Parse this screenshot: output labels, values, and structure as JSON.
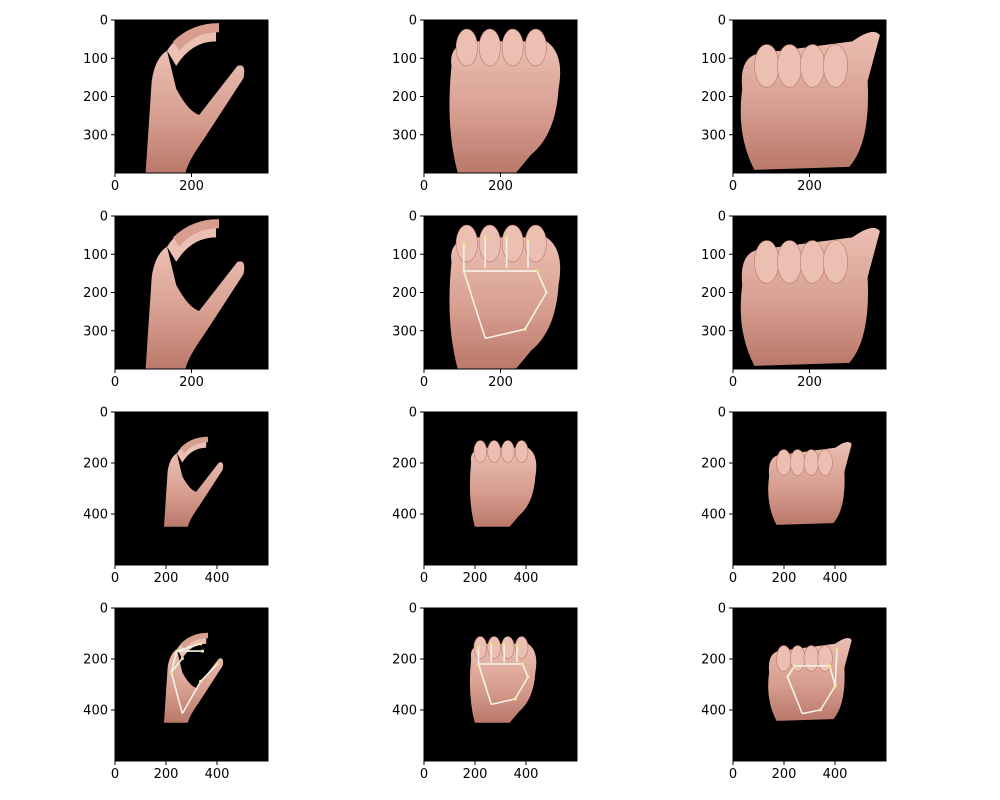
{
  "chart_data": {
    "type": "image-grid",
    "rows": 4,
    "cols": 3,
    "panels": [
      {
        "row": 0,
        "col": 0,
        "pose": "c-shape",
        "skeleton": false,
        "size": 400,
        "xticks": [
          0,
          200
        ],
        "yticks": [
          0,
          100,
          200,
          300
        ]
      },
      {
        "row": 0,
        "col": 1,
        "pose": "fist",
        "skeleton": false,
        "size": 400,
        "xticks": [
          0,
          200
        ],
        "yticks": [
          0,
          100,
          200,
          300
        ]
      },
      {
        "row": 0,
        "col": 2,
        "pose": "fist-thumb",
        "skeleton": false,
        "size": 400,
        "xticks": [
          0,
          200
        ],
        "yticks": [
          0,
          100,
          200,
          300
        ]
      },
      {
        "row": 1,
        "col": 0,
        "pose": "c-shape",
        "skeleton": false,
        "size": 400,
        "xticks": [
          0,
          200
        ],
        "yticks": [
          0,
          100,
          200,
          300
        ]
      },
      {
        "row": 1,
        "col": 1,
        "pose": "fist",
        "skeleton": true,
        "size": 400,
        "xticks": [
          0,
          200
        ],
        "yticks": [
          0,
          100,
          200,
          300
        ]
      },
      {
        "row": 1,
        "col": 2,
        "pose": "fist-thumb",
        "skeleton": false,
        "size": 400,
        "xticks": [
          0,
          200
        ],
        "yticks": [
          0,
          100,
          200,
          300
        ]
      },
      {
        "row": 2,
        "col": 0,
        "pose": "c-shape",
        "skeleton": false,
        "size": 600,
        "xticks": [
          0,
          200,
          400
        ],
        "yticks": [
          0,
          200,
          400
        ]
      },
      {
        "row": 2,
        "col": 1,
        "pose": "fist",
        "skeleton": false,
        "size": 600,
        "xticks": [
          0,
          200,
          400
        ],
        "yticks": [
          0,
          200,
          400
        ]
      },
      {
        "row": 2,
        "col": 2,
        "pose": "fist-thumb",
        "skeleton": false,
        "size": 600,
        "xticks": [
          0,
          200,
          400
        ],
        "yticks": [
          0,
          200,
          400
        ]
      },
      {
        "row": 3,
        "col": 0,
        "pose": "c-shape",
        "skeleton": true,
        "size": 600,
        "xticks": [
          0,
          200,
          400
        ],
        "yticks": [
          0,
          200,
          400
        ]
      },
      {
        "row": 3,
        "col": 1,
        "pose": "fist",
        "skeleton": true,
        "size": 600,
        "xticks": [
          0,
          200,
          400
        ],
        "yticks": [
          0,
          200,
          400
        ]
      },
      {
        "row": 3,
        "col": 2,
        "pose": "fist-thumb",
        "skeleton": true,
        "size": 600,
        "xticks": [
          0,
          200,
          400
        ],
        "yticks": [
          0,
          200,
          400
        ]
      }
    ],
    "colors": {
      "background": "#000000",
      "skin": "#d79e90",
      "skin_dark": "#b9786a",
      "skin_light": "#ebbfb2",
      "skeleton": "#f2f2e8",
      "joint": "#f0e08a"
    }
  }
}
